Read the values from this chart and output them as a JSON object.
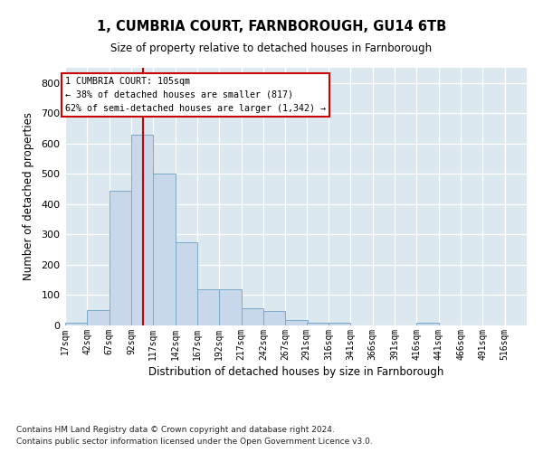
{
  "title": "1, CUMBRIA COURT, FARNBOROUGH, GU14 6TB",
  "subtitle": "Size of property relative to detached houses in Farnborough",
  "xlabel": "Distribution of detached houses by size in Farnborough",
  "ylabel": "Number of detached properties",
  "annotation_line1": "1 CUMBRIA COURT: 105sqm",
  "annotation_line2": "← 38% of detached houses are smaller (817)",
  "annotation_line3": "62% of semi-detached houses are larger (1,342) →",
  "property_size": 105,
  "bar_color": "#c8d8ea",
  "bar_edge_color": "#7aaac8",
  "vline_color": "#cc0000",
  "background_color": "#dce8f0",
  "grid_color": "#ffffff",
  "categories": [
    "17sqm",
    "42sqm",
    "67sqm",
    "92sqm",
    "117sqm",
    "142sqm",
    "167sqm",
    "192sqm",
    "217sqm",
    "242sqm",
    "267sqm",
    "291sqm",
    "316sqm",
    "341sqm",
    "366sqm",
    "391sqm",
    "416sqm",
    "441sqm",
    "466sqm",
    "491sqm",
    "516sqm"
  ],
  "bin_edges": [
    17,
    42,
    67,
    92,
    117,
    142,
    167,
    192,
    217,
    242,
    267,
    291,
    316,
    341,
    366,
    391,
    416,
    441,
    466,
    491,
    516
  ],
  "bar_heights": [
    10,
    50,
    445,
    630,
    500,
    275,
    120,
    120,
    58,
    48,
    18,
    10,
    10,
    0,
    0,
    0,
    8,
    0,
    0,
    0,
    0
  ],
  "ylim": [
    0,
    850
  ],
  "yticks": [
    0,
    100,
    200,
    300,
    400,
    500,
    600,
    700,
    800
  ],
  "footnote1": "Contains HM Land Registry data © Crown copyright and database right 2024.",
  "footnote2": "Contains public sector information licensed under the Open Government Licence v3.0."
}
